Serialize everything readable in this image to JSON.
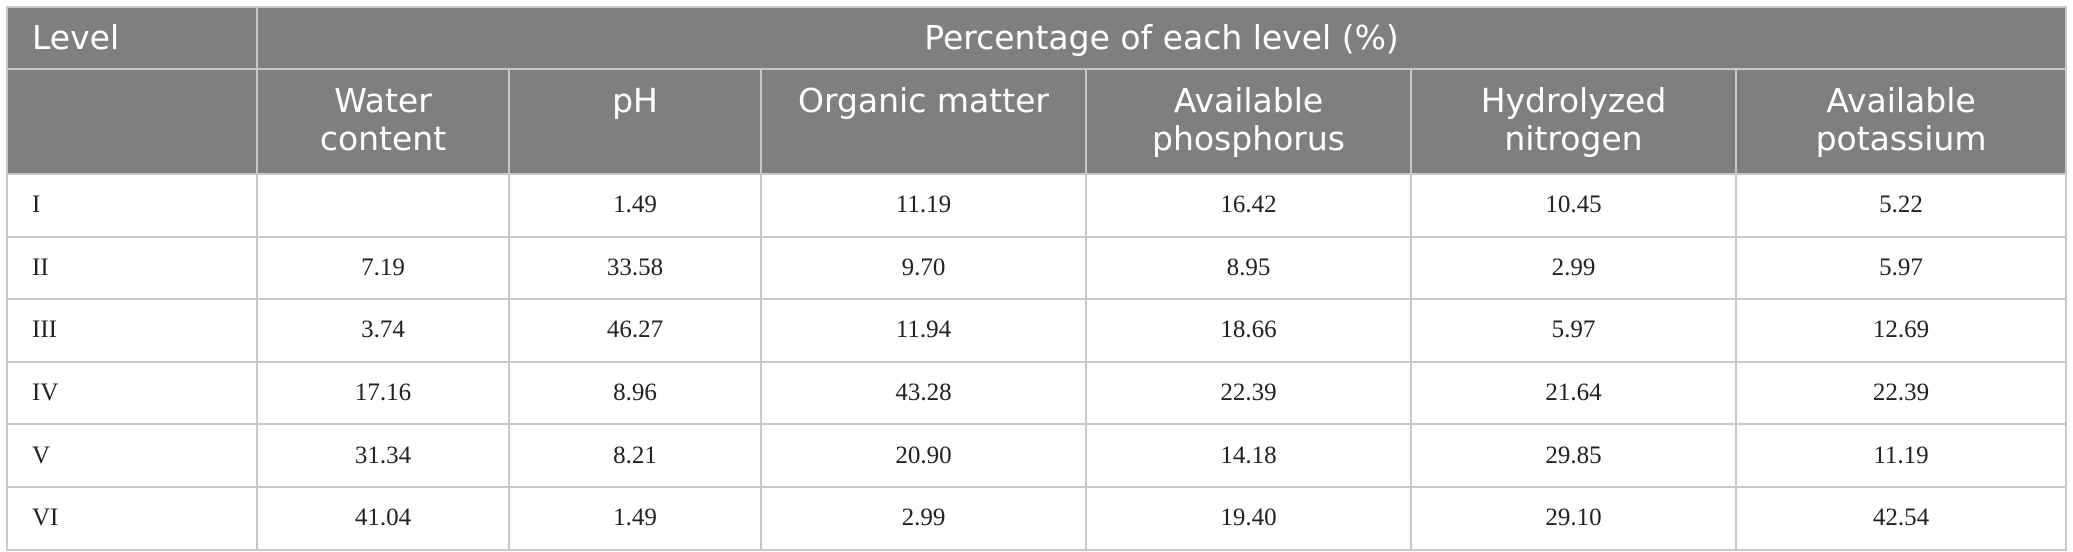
{
  "table": {
    "level_header": "Level",
    "group_header": "Percentage of each level (%)",
    "columns": [
      "Water content",
      "pH",
      "Organic matter",
      "Available phosphorus",
      "Hydrolyzed nitrogen",
      "Available potassium"
    ],
    "rows": [
      {
        "level": "I",
        "values": [
          "",
          "1.49",
          "11.19",
          "16.42",
          "10.45",
          "5.22"
        ]
      },
      {
        "level": "II",
        "values": [
          "7.19",
          "33.58",
          "9.70",
          "8.95",
          "2.99",
          "5.97"
        ]
      },
      {
        "level": "III",
        "values": [
          "3.74",
          "46.27",
          "11.94",
          "18.66",
          "5.97",
          "12.69"
        ]
      },
      {
        "level": "IV",
        "values": [
          "17.16",
          "8.96",
          "43.28",
          "22.39",
          "21.64",
          "22.39"
        ]
      },
      {
        "level": "V",
        "values": [
          "31.34",
          "8.21",
          "20.90",
          "14.18",
          "29.85",
          "11.19"
        ]
      },
      {
        "level": "VI",
        "values": [
          "41.04",
          "1.49",
          "2.99",
          "19.40",
          "29.10",
          "42.54"
        ]
      }
    ]
  }
}
